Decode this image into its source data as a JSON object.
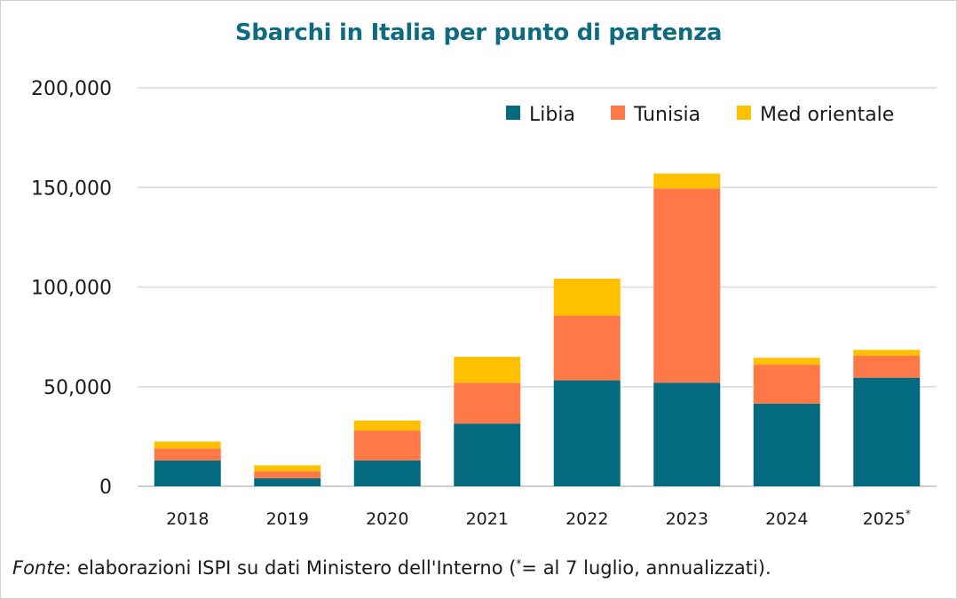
{
  "chart_data": {
    "type": "bar",
    "stacked": true,
    "title": "Sbarchi in Italia per punto di partenza",
    "categories": [
      "2018",
      "2019",
      "2020",
      "2021",
      "2022",
      "2023",
      "2024",
      "2025"
    ],
    "category_suffixes": [
      "",
      "",
      "",
      "",
      "",
      "",
      "",
      "*"
    ],
    "series": [
      {
        "name": "Libia",
        "color": "#036a80",
        "values": [
          13000,
          4000,
          13000,
          31500,
          53200,
          52000,
          41500,
          54500
        ]
      },
      {
        "name": "Tunisia",
        "color": "#ff7847",
        "values": [
          6000,
          3500,
          15000,
          20500,
          32500,
          97500,
          19500,
          11000
        ]
      },
      {
        "name": "Med orientale",
        "color": "#ffc000",
        "values": [
          3500,
          3000,
          5000,
          13000,
          18500,
          7500,
          3500,
          3000
        ]
      }
    ],
    "y_ticks": [
      "0",
      "50,000",
      "100,000",
      "150,000",
      "200,000"
    ],
    "ylim": [
      0,
      200000
    ],
    "grid": true,
    "legend_position": "top-right"
  },
  "source": {
    "label": "Fonte",
    "text": ": elaborazioni ISPI su dati Ministero dell'Interno (",
    "star": "*",
    "text_end": "= al 7 luglio, annualizzati)."
  }
}
